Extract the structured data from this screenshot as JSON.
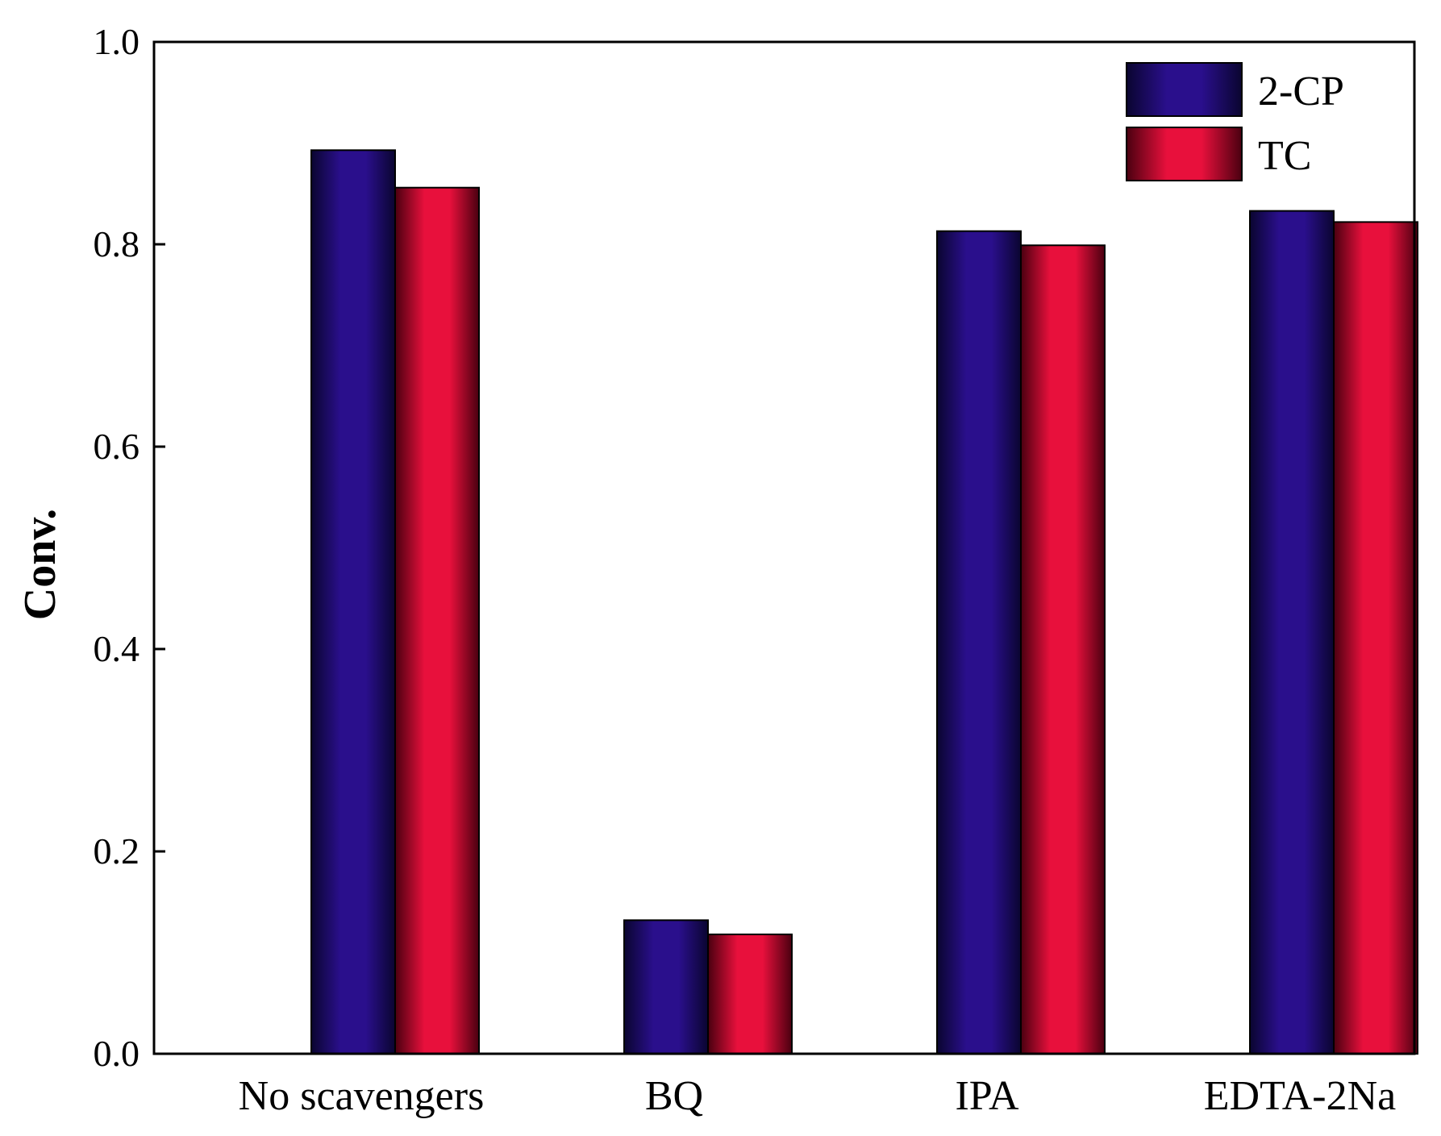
{
  "chart_data": {
    "type": "bar",
    "title": "",
    "xlabel": "",
    "ylabel": "Conv.",
    "ylim": [
      0.0,
      1.0
    ],
    "yticks": [
      "0.0",
      "0.2",
      "0.4",
      "0.6",
      "0.8",
      "1.0"
    ],
    "categories": [
      "No scavengers",
      "BQ",
      "IPA",
      "EDTA-2Na"
    ],
    "series": [
      {
        "name": "2-CP",
        "values": [
          0.893,
          0.132,
          0.813,
          0.833
        ],
        "color": "#2a0f8c"
      },
      {
        "name": "TC",
        "values": [
          0.856,
          0.118,
          0.799,
          0.822
        ],
        "color": "#e8103c"
      }
    ],
    "grid": false,
    "legend_position": "top-right"
  }
}
